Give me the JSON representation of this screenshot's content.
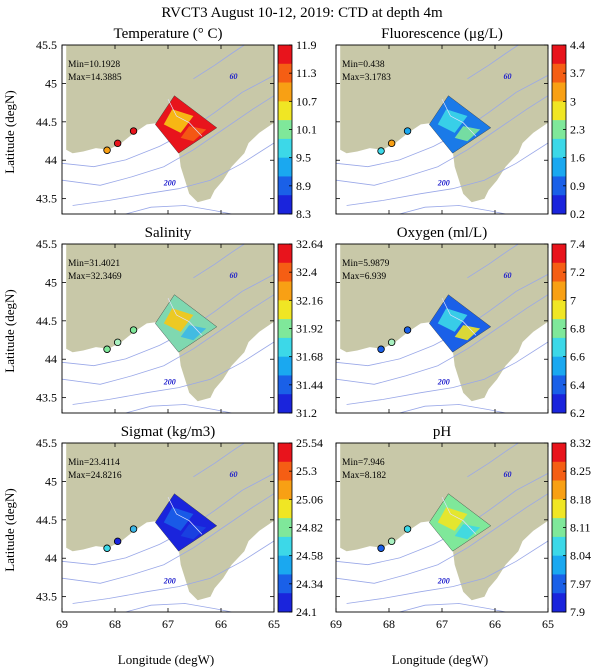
{
  "figure": {
    "title": "RVCT3 August 10-12, 2019: CTD at depth 4m",
    "xlabel": "Longitude (degW)",
    "ylabel": "Latitude (degN)",
    "depth_labels": [
      "60",
      "200"
    ]
  },
  "colors": {
    "land": "#c8c8a8",
    "contour": "#9aa8e8",
    "sea": "#ffffff"
  },
  "chart_data": [
    {
      "type": "heatmap",
      "title": "Temperature (° C)",
      "variable": "temperature",
      "min_label": "Min=10.1928",
      "max_label": "Max=14.3885",
      "xlim": [
        69,
        65
      ],
      "ylim": [
        43.3,
        45.5
      ],
      "xticks": [
        "69",
        "68",
        "67",
        "66",
        "65"
      ],
      "yticks": [
        "43.5",
        "44",
        "44.5",
        "45",
        "45.5"
      ],
      "colorbar_ticks": [
        "11.9",
        "11.3",
        "10.7",
        "10.1",
        "9.5",
        "8.9",
        "8.3"
      ],
      "colorbar_colors": [
        "#e8141c",
        "#f55e14",
        "#f8a014",
        "#f0e624",
        "#7fe89a",
        "#3cd8e8",
        "#1aa8f0",
        "#1a60e8",
        "#1a24dc"
      ],
      "stations": [
        {
          "lon": 68.15,
          "lat": 44.13,
          "color": "#f8a014"
        },
        {
          "lon": 67.95,
          "lat": 44.22,
          "color": "#e8141c"
        },
        {
          "lon": 67.65,
          "lat": 44.38,
          "color": "#e8141c"
        }
      ],
      "field_color": "#e8141c",
      "patches": [
        {
          "color": "#f8c814"
        },
        {
          "color": "#f55e14"
        }
      ]
    },
    {
      "type": "heatmap",
      "title": "Fluorescence (μg/L)",
      "variable": "fluorescence",
      "min_label": "Min=0.438",
      "max_label": "Max=3.1783",
      "xlim": [
        69,
        65
      ],
      "ylim": [
        43.3,
        45.5
      ],
      "xticks": [
        "69",
        "68",
        "67",
        "66",
        "65"
      ],
      "yticks": [
        "43.5",
        "44",
        "44.5",
        "45",
        "45.5"
      ],
      "colorbar_ticks": [
        "4.4",
        "3.7",
        "3",
        "2.3",
        "1.6",
        "0.9",
        "0.2"
      ],
      "colorbar_colors": [
        "#e8141c",
        "#f55e14",
        "#f8a014",
        "#f0e624",
        "#7fe89a",
        "#3cd8e8",
        "#1aa8f0",
        "#1a60e8",
        "#1a24dc"
      ],
      "stations": [
        {
          "lon": 68.15,
          "lat": 44.12,
          "color": "#3cd8e8"
        },
        {
          "lon": 67.95,
          "lat": 44.22,
          "color": "#f8a014"
        },
        {
          "lon": 67.65,
          "lat": 44.38,
          "color": "#1aa8f0"
        }
      ],
      "field_color": "#1a7ae8",
      "patches": [
        {
          "color": "#3cd8e8"
        },
        {
          "color": "#7fe89a"
        }
      ]
    },
    {
      "type": "heatmap",
      "title": "Salinity",
      "variable": "salinity",
      "min_label": "Min=31.4021",
      "max_label": "Max=32.3469",
      "xlim": [
        69,
        65
      ],
      "ylim": [
        43.3,
        45.5
      ],
      "xticks": [
        "69",
        "68",
        "67",
        "66",
        "65"
      ],
      "yticks": [
        "43.5",
        "44",
        "44.5",
        "45",
        "45.5"
      ],
      "colorbar_ticks": [
        "32.64",
        "32.4",
        "32.16",
        "31.92",
        "31.68",
        "31.44",
        "31.2"
      ],
      "colorbar_colors": [
        "#e8141c",
        "#f55e14",
        "#f8a014",
        "#f0e624",
        "#7fe89a",
        "#3cd8e8",
        "#1aa8f0",
        "#1a60e8",
        "#1a24dc"
      ],
      "stations": [
        {
          "lon": 68.15,
          "lat": 44.13,
          "color": "#7fe89a"
        },
        {
          "lon": 67.95,
          "lat": 44.22,
          "color": "#a8f0c0"
        },
        {
          "lon": 67.65,
          "lat": 44.38,
          "color": "#7fe89a"
        }
      ],
      "field_color": "#7fd8b0",
      "patches": [
        {
          "color": "#f8c814"
        },
        {
          "color": "#3cb8e8"
        }
      ]
    },
    {
      "type": "heatmap",
      "title": "Oxygen (ml/L)",
      "variable": "oxygen",
      "min_label": "Min=5.9879",
      "max_label": "Max=6.939",
      "xlim": [
        69,
        65
      ],
      "ylim": [
        43.3,
        45.5
      ],
      "xticks": [
        "69",
        "68",
        "67",
        "66",
        "65"
      ],
      "yticks": [
        "43.5",
        "44",
        "44.5",
        "45",
        "45.5"
      ],
      "colorbar_ticks": [
        "7.4",
        "7.2",
        "7",
        "6.8",
        "6.6",
        "6.4",
        "6.2"
      ],
      "colorbar_colors": [
        "#e8141c",
        "#f55e14",
        "#f8a014",
        "#f0e624",
        "#7fe89a",
        "#3cd8e8",
        "#1aa8f0",
        "#1a60e8",
        "#1a24dc"
      ],
      "stations": [
        {
          "lon": 68.15,
          "lat": 44.13,
          "color": "#1a60e8"
        },
        {
          "lon": 67.95,
          "lat": 44.22,
          "color": "#a8f0c0"
        },
        {
          "lon": 67.65,
          "lat": 44.38,
          "color": "#1a60e8"
        }
      ],
      "field_color": "#1a60e8",
      "patches": [
        {
          "color": "#3cd8e8"
        },
        {
          "color": "#f0e624"
        }
      ]
    },
    {
      "type": "heatmap",
      "title": "Sigmat (kg/m3)",
      "variable": "sigmat",
      "min_label": "Min=23.4114",
      "max_label": "Max=24.8216",
      "xlim": [
        69,
        65
      ],
      "ylim": [
        43.3,
        45.5
      ],
      "xticks": [
        "69",
        "68",
        "67",
        "66",
        "65"
      ],
      "yticks": [
        "43.5",
        "44",
        "44.5",
        "45",
        "45.5"
      ],
      "colorbar_ticks": [
        "25.54",
        "25.3",
        "25.06",
        "24.82",
        "24.58",
        "24.34",
        "24.1"
      ],
      "colorbar_colors": [
        "#e8141c",
        "#f55e14",
        "#f8a014",
        "#f0e624",
        "#7fe89a",
        "#3cd8e8",
        "#1aa8f0",
        "#1a60e8",
        "#1a24dc"
      ],
      "stations": [
        {
          "lon": 68.15,
          "lat": 44.13,
          "color": "#3cd8e8"
        },
        {
          "lon": 67.95,
          "lat": 44.22,
          "color": "#1a24dc"
        },
        {
          "lon": 67.65,
          "lat": 44.38,
          "color": "#3cb8e8"
        }
      ],
      "field_color": "#1a24dc",
      "patches": [
        {
          "color": "#1a60e8"
        },
        {
          "color": "#1a44e0"
        }
      ]
    },
    {
      "type": "heatmap",
      "title": "pH",
      "variable": "ph",
      "min_label": "Min=7.946",
      "max_label": "Max=8.182",
      "xlim": [
        69,
        65
      ],
      "ylim": [
        43.3,
        45.5
      ],
      "xticks": [
        "69",
        "68",
        "67",
        "66",
        "65"
      ],
      "yticks": [
        "43.5",
        "44",
        "44.5",
        "45",
        "45.5"
      ],
      "colorbar_ticks": [
        "8.32",
        "8.25",
        "8.18",
        "8.11",
        "8.04",
        "7.97",
        "7.9"
      ],
      "colorbar_colors": [
        "#e8141c",
        "#f55e14",
        "#f8a014",
        "#f0e624",
        "#7fe89a",
        "#3cd8e8",
        "#1aa8f0",
        "#1a60e8",
        "#1a24dc"
      ],
      "stations": [
        {
          "lon": 68.15,
          "lat": 44.13,
          "color": "#1a60e8"
        },
        {
          "lon": 67.95,
          "lat": 44.22,
          "color": "#a8f0c0"
        },
        {
          "lon": 67.65,
          "lat": 44.38,
          "color": "#3cd8e8"
        }
      ],
      "field_color": "#7fe89a",
      "patches": [
        {
          "color": "#f0e624"
        },
        {
          "color": "#3cd8e8"
        }
      ]
    }
  ]
}
